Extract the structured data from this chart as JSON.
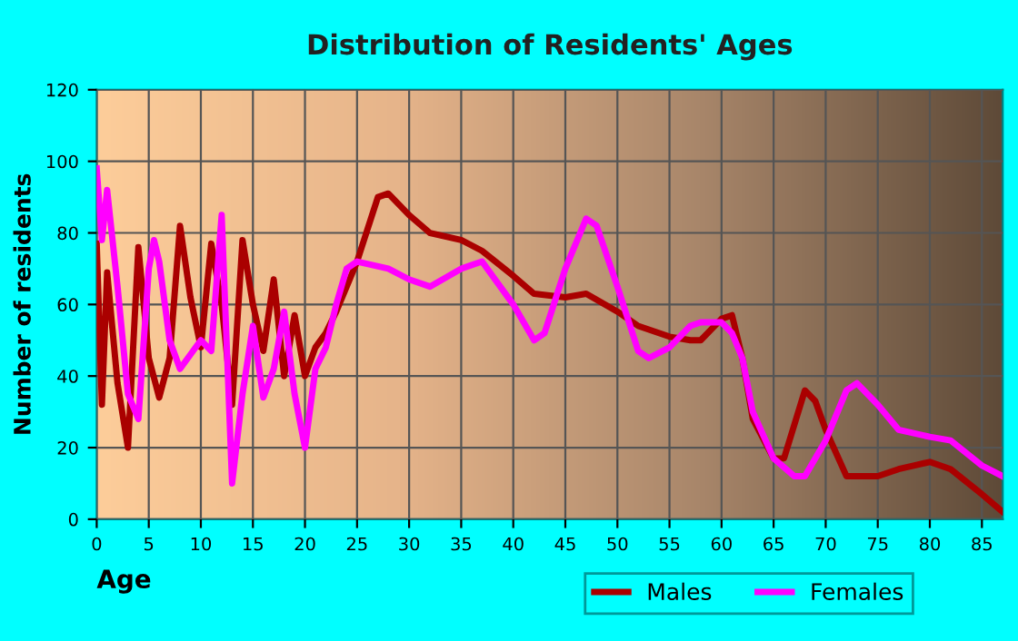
{
  "chart_data": {
    "type": "line",
    "title": "Distribution of Residents' Ages",
    "xlabel": "Age",
    "ylabel": "Number of residents",
    "xlim": [
      0,
      87
    ],
    "xticks": [
      0,
      5,
      10,
      15,
      20,
      25,
      30,
      35,
      40,
      45,
      50,
      55,
      60,
      65,
      70,
      75,
      80,
      85
    ],
    "ylim": [
      0,
      120
    ],
    "yticks": [
      0,
      20,
      40,
      60,
      80,
      100,
      120
    ],
    "grid": true,
    "legend": "bottom",
    "marker": "none",
    "line_style": "solid",
    "series": [
      {
        "name": "Males",
        "color": "#aa0000",
        "x": [
          0,
          0.5,
          1,
          2,
          3,
          4,
          5,
          6,
          7,
          8,
          9,
          10,
          11,
          12,
          13,
          14,
          15,
          16,
          17,
          18,
          19,
          20,
          21,
          22,
          23,
          25,
          27,
          28,
          30,
          32,
          35,
          37,
          40,
          42,
          45,
          47,
          50,
          52,
          55,
          57,
          58,
          60,
          61,
          62,
          63,
          65,
          66,
          68,
          69,
          70,
          72,
          75,
          77,
          80,
          82,
          85,
          87
        ],
        "values": [
          77,
          32,
          69,
          38,
          20,
          76,
          45,
          34,
          45,
          82,
          62,
          48,
          77,
          60,
          32,
          78,
          60,
          47,
          67,
          40,
          57,
          40,
          48,
          52,
          58,
          72,
          90,
          91,
          85,
          80,
          78,
          75,
          68,
          63,
          62,
          63,
          58,
          54,
          51,
          50,
          50,
          56,
          57,
          45,
          28,
          17,
          17,
          36,
          33,
          25,
          12,
          12,
          14,
          16,
          14,
          7,
          2
        ]
      },
      {
        "name": "Females",
        "color": "#ff00ff",
        "x": [
          0,
          0.5,
          1,
          2,
          3,
          4,
          5,
          5.5,
          6,
          7,
          8,
          9,
          10,
          11,
          12,
          13,
          14,
          15,
          16,
          17,
          18,
          19,
          20,
          21,
          22,
          23,
          24,
          25,
          28,
          30,
          32,
          35,
          37,
          40,
          42,
          43,
          45,
          47,
          48,
          50,
          52,
          53,
          55,
          57,
          58,
          60,
          61,
          62,
          63,
          65,
          67,
          68,
          70,
          72,
          73,
          75,
          77,
          80,
          82,
          85,
          87
        ],
        "values": [
          98,
          78,
          92,
          65,
          35,
          28,
          70,
          78,
          72,
          50,
          42,
          46,
          50,
          47,
          85,
          10,
          35,
          54,
          34,
          42,
          58,
          35,
          20,
          42,
          48,
          60,
          70,
          72,
          70,
          67,
          65,
          70,
          72,
          60,
          50,
          52,
          70,
          84,
          82,
          65,
          47,
          45,
          48,
          54,
          55,
          55,
          52,
          45,
          30,
          17,
          12,
          12,
          22,
          36,
          38,
          32,
          25,
          23,
          22,
          15,
          12
        ]
      }
    ]
  }
}
